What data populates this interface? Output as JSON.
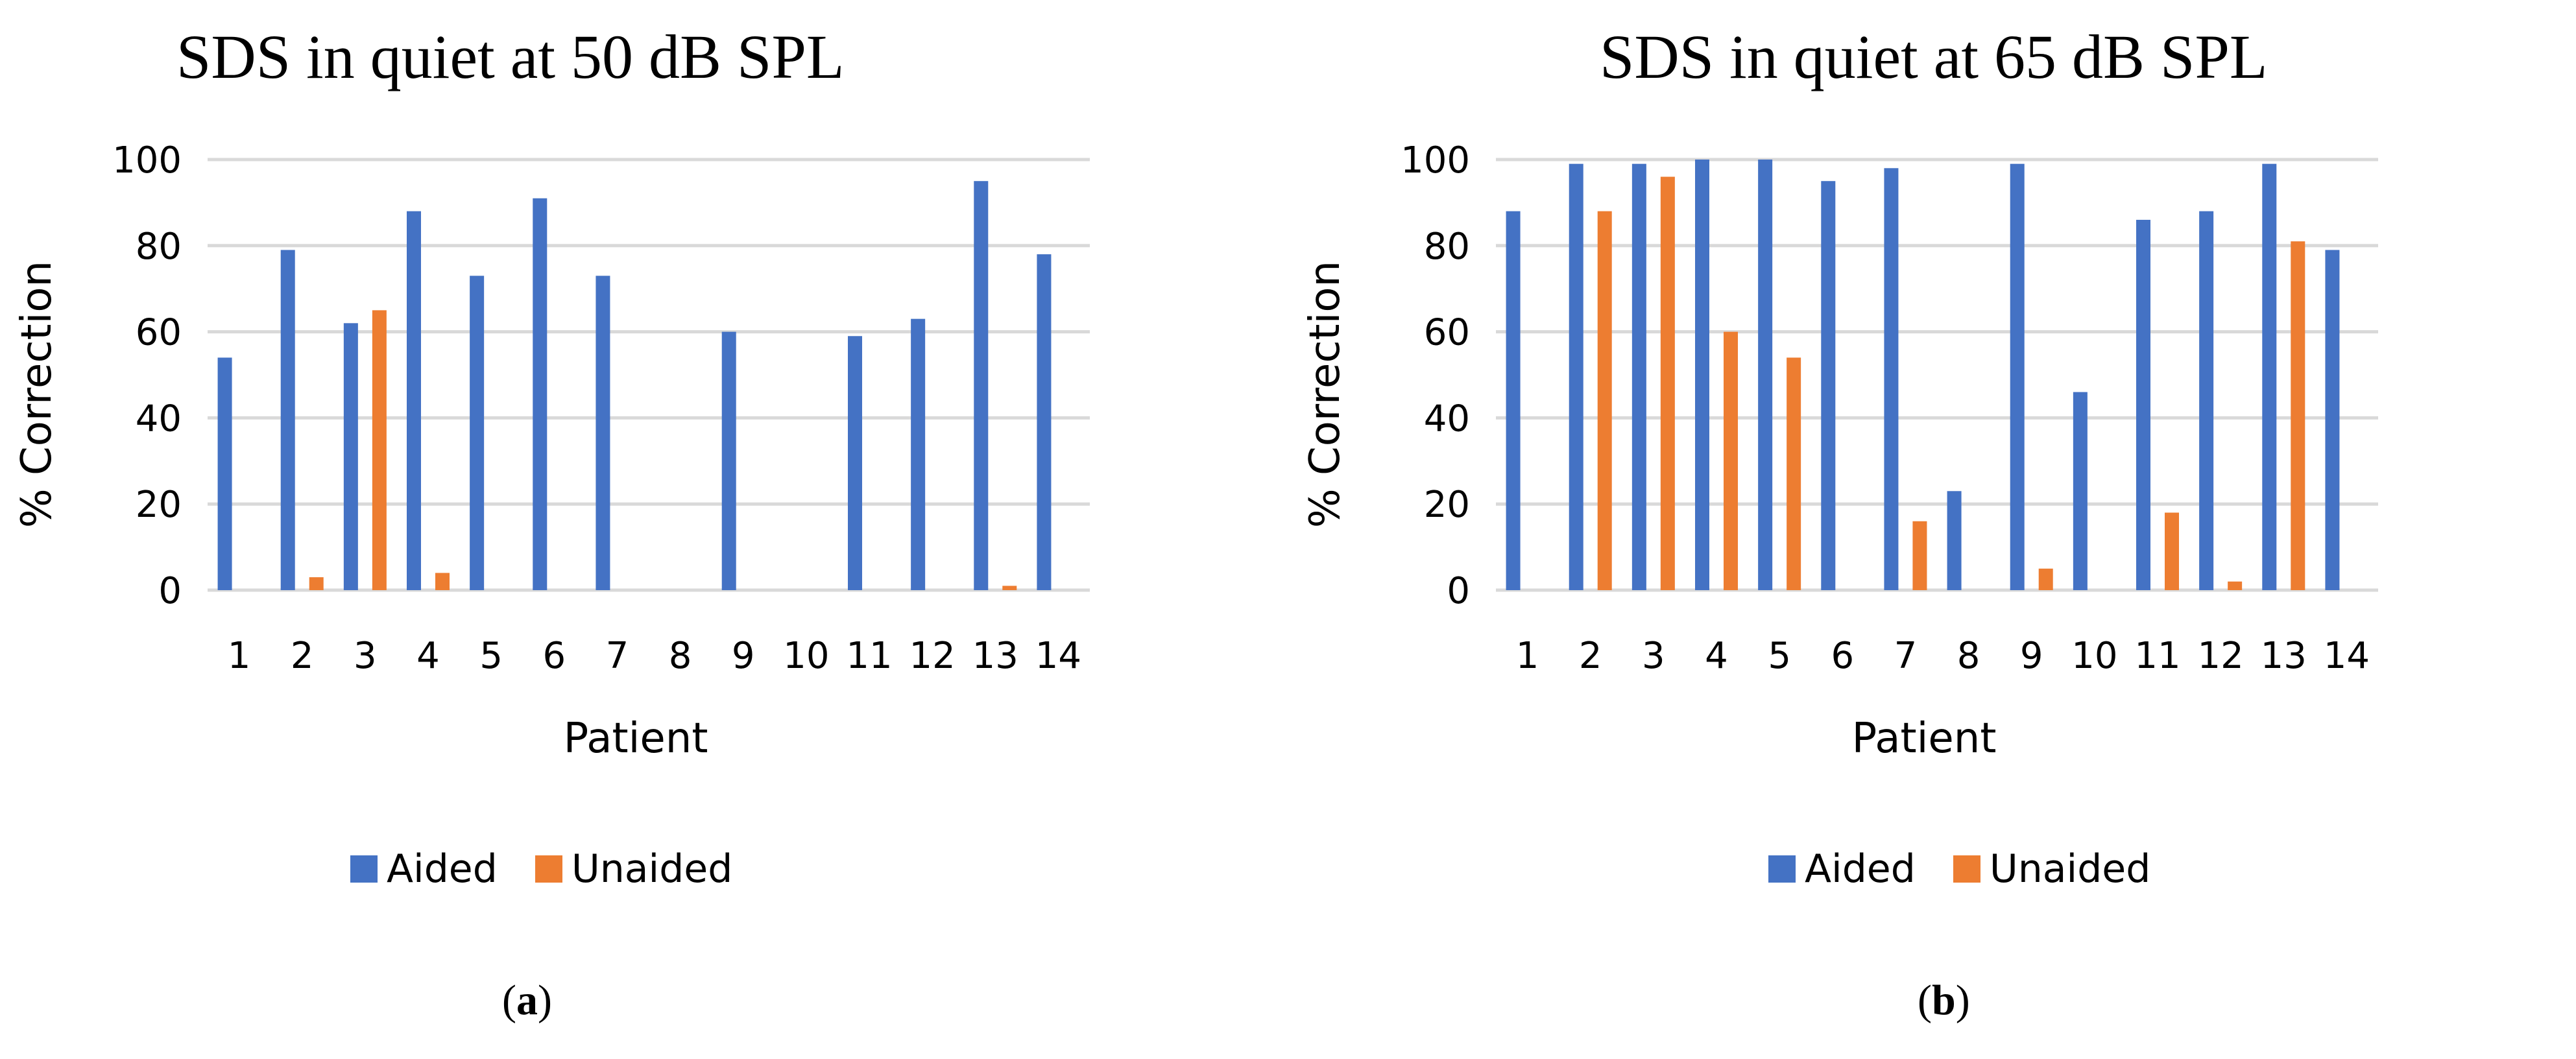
{
  "colors": {
    "aided": "#4472C4",
    "unaided": "#ED7D31",
    "grid": "#D9D9D9"
  },
  "chart_data": [
    {
      "type": "bar",
      "title": "SDS in quiet at 50 dB SPL",
      "xlabel": "Patient",
      "ylabel": "% Correction",
      "ylim": [
        0,
        100
      ],
      "yticks": [
        "0",
        "20",
        "40",
        "60",
        "80",
        "100"
      ],
      "categories": [
        "1",
        "2",
        "3",
        "4",
        "5",
        "6",
        "7",
        "8",
        "9",
        "10",
        "11",
        "12",
        "13",
        "14"
      ],
      "legend": [
        "Aided",
        "Unaided"
      ],
      "series": [
        {
          "name": "Aided",
          "values": [
            54,
            79,
            62,
            88,
            73,
            91,
            73,
            0,
            60,
            0,
            59,
            63,
            95,
            78
          ]
        },
        {
          "name": "Unaided",
          "values": [
            0,
            3,
            65,
            4,
            0,
            0,
            0,
            0,
            0,
            0,
            0,
            0,
            1,
            0
          ]
        }
      ],
      "sublabel_paren_open": "(",
      "sublabel_letter": "a",
      "sublabel_paren_close": ")"
    },
    {
      "type": "bar",
      "title": "SDS in quiet at 65 dB SPL",
      "xlabel": "Patient",
      "ylabel": "% Correction",
      "ylim": [
        0,
        100
      ],
      "yticks": [
        "0",
        "20",
        "40",
        "60",
        "80",
        "100"
      ],
      "categories": [
        "1",
        "2",
        "3",
        "4",
        "5",
        "6",
        "7",
        "8",
        "9",
        "10",
        "11",
        "12",
        "13",
        "14"
      ],
      "legend": [
        "Aided",
        "Unaided"
      ],
      "series": [
        {
          "name": "Aided",
          "values": [
            88,
            99,
            99,
            100,
            100,
            95,
            98,
            23,
            99,
            46,
            86,
            88,
            99,
            79
          ]
        },
        {
          "name": "Unaided",
          "values": [
            0,
            88,
            96,
            60,
            54,
            0,
            16,
            0,
            5,
            0,
            18,
            2,
            81,
            0
          ]
        }
      ],
      "sublabel_paren_open": "(",
      "sublabel_letter": "b",
      "sublabel_paren_close": ")"
    }
  ]
}
